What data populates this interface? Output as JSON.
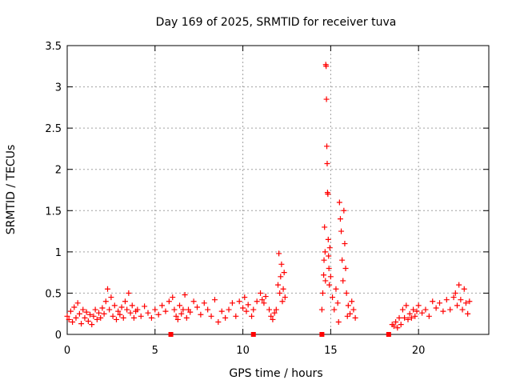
{
  "chart_data": {
    "type": "scatter",
    "title": "Day 169 of 2025, SRMTID for receiver tuva",
    "xlabel": "GPS time / hours",
    "ylabel": "SRMTID / TECUs",
    "xlim": [
      0,
      24
    ],
    "ylim": [
      0,
      3.5
    ],
    "xticks": [
      0,
      5,
      10,
      15,
      20
    ],
    "yticks": [
      0,
      0.5,
      1,
      1.5,
      2,
      2.5,
      3,
      3.5
    ],
    "xtick_labels": [
      "0",
      "5",
      "10",
      "15",
      "20"
    ],
    "ytick_labels": [
      "0",
      "0.5",
      "1",
      "1.5",
      "2",
      "2.5",
      "3",
      "3.5"
    ],
    "grid": true,
    "series": [
      {
        "name": "SRMTID",
        "marker": "plus",
        "color": "#ff0000",
        "points": [
          [
            0.0,
            0.22
          ],
          [
            0.1,
            0.18
          ],
          [
            0.2,
            0.28
          ],
          [
            0.3,
            0.15
          ],
          [
            0.4,
            0.33
          ],
          [
            0.5,
            0.2
          ],
          [
            0.6,
            0.38
          ],
          [
            0.7,
            0.25
          ],
          [
            0.8,
            0.13
          ],
          [
            0.9,
            0.3
          ],
          [
            1.0,
            0.2
          ],
          [
            1.1,
            0.27
          ],
          [
            1.2,
            0.16
          ],
          [
            1.3,
            0.24
          ],
          [
            1.4,
            0.12
          ],
          [
            1.5,
            0.22
          ],
          [
            1.6,
            0.3
          ],
          [
            1.7,
            0.18
          ],
          [
            1.8,
            0.26
          ],
          [
            1.9,
            0.2
          ],
          [
            2.0,
            0.32
          ],
          [
            2.1,
            0.25
          ],
          [
            2.2,
            0.4
          ],
          [
            2.3,
            0.55
          ],
          [
            2.4,
            0.3
          ],
          [
            2.5,
            0.45
          ],
          [
            2.6,
            0.22
          ],
          [
            2.7,
            0.35
          ],
          [
            2.8,
            0.18
          ],
          [
            2.9,
            0.28
          ],
          [
            3.0,
            0.24
          ],
          [
            3.1,
            0.33
          ],
          [
            3.2,
            0.2
          ],
          [
            3.3,
            0.4
          ],
          [
            3.4,
            0.3
          ],
          [
            3.5,
            0.5
          ],
          [
            3.6,
            0.26
          ],
          [
            3.7,
            0.35
          ],
          [
            3.8,
            0.2
          ],
          [
            3.9,
            0.28
          ],
          [
            4.0,
            0.3
          ],
          [
            4.2,
            0.22
          ],
          [
            4.4,
            0.34
          ],
          [
            4.6,
            0.26
          ],
          [
            4.8,
            0.2
          ],
          [
            5.0,
            0.3
          ],
          [
            5.2,
            0.24
          ],
          [
            5.4,
            0.35
          ],
          [
            5.6,
            0.28
          ],
          [
            5.8,
            0.4
          ],
          [
            6.0,
            0.45
          ],
          [
            6.1,
            0.3
          ],
          [
            6.2,
            0.22
          ],
          [
            6.3,
            0.18
          ],
          [
            6.4,
            0.35
          ],
          [
            6.5,
            0.25
          ],
          [
            6.6,
            0.3
          ],
          [
            6.7,
            0.48
          ],
          [
            6.8,
            0.2
          ],
          [
            6.9,
            0.3
          ],
          [
            7.0,
            0.27
          ],
          [
            7.2,
            0.4
          ],
          [
            7.4,
            0.33
          ],
          [
            7.6,
            0.24
          ],
          [
            7.8,
            0.38
          ],
          [
            8.0,
            0.3
          ],
          [
            8.2,
            0.22
          ],
          [
            8.4,
            0.42
          ],
          [
            8.6,
            0.15
          ],
          [
            8.8,
            0.28
          ],
          [
            9.0,
            0.2
          ],
          [
            9.2,
            0.3
          ],
          [
            9.4,
            0.38
          ],
          [
            9.6,
            0.22
          ],
          [
            9.8,
            0.4
          ],
          [
            10.0,
            0.32
          ],
          [
            10.1,
            0.45
          ],
          [
            10.2,
            0.28
          ],
          [
            10.3,
            0.36
          ],
          [
            10.5,
            0.22
          ],
          [
            10.6,
            0.3
          ],
          [
            10.8,
            0.4
          ],
          [
            11.0,
            0.5
          ],
          [
            11.1,
            0.42
          ],
          [
            11.2,
            0.38
          ],
          [
            11.3,
            0.46
          ],
          [
            11.5,
            0.3
          ],
          [
            11.6,
            0.22
          ],
          [
            11.7,
            0.18
          ],
          [
            11.8,
            0.26
          ],
          [
            11.9,
            0.3
          ],
          [
            12.0,
            0.6
          ],
          [
            12.05,
            0.98
          ],
          [
            12.1,
            0.5
          ],
          [
            12.15,
            0.7
          ],
          [
            12.2,
            0.85
          ],
          [
            12.25,
            0.4
          ],
          [
            12.3,
            0.55
          ],
          [
            12.35,
            0.75
          ],
          [
            12.4,
            0.45
          ],
          [
            14.5,
            0.3
          ],
          [
            14.55,
            0.5
          ],
          [
            14.6,
            0.72
          ],
          [
            14.62,
            0.9
          ],
          [
            14.65,
            1.3
          ],
          [
            14.68,
            1.0
          ],
          [
            14.7,
            0.65
          ],
          [
            14.72,
            3.27
          ],
          [
            14.74,
            3.25
          ],
          [
            14.76,
            2.85
          ],
          [
            14.78,
            2.28
          ],
          [
            14.8,
            2.07
          ],
          [
            14.82,
            1.72
          ],
          [
            14.84,
            1.7
          ],
          [
            14.86,
            1.15
          ],
          [
            14.88,
            0.95
          ],
          [
            14.9,
            0.8
          ],
          [
            14.92,
            0.6
          ],
          [
            14.95,
            1.05
          ],
          [
            15.0,
            0.7
          ],
          [
            15.1,
            0.45
          ],
          [
            15.2,
            0.3
          ],
          [
            15.3,
            0.55
          ],
          [
            15.4,
            0.38
          ],
          [
            15.5,
            1.6
          ],
          [
            15.55,
            1.4
          ],
          [
            15.6,
            1.25
          ],
          [
            15.65,
            0.9
          ],
          [
            15.7,
            0.65
          ],
          [
            15.75,
            1.5
          ],
          [
            15.8,
            1.1
          ],
          [
            15.85,
            0.8
          ],
          [
            15.9,
            0.5
          ],
          [
            16.0,
            0.35
          ],
          [
            16.1,
            0.25
          ],
          [
            16.2,
            0.4
          ],
          [
            16.3,
            0.3
          ],
          [
            16.4,
            0.2
          ],
          [
            15.45,
            0.15
          ],
          [
            15.95,
            0.22
          ],
          [
            18.5,
            0.12
          ],
          [
            18.6,
            0.1
          ],
          [
            18.7,
            0.15
          ],
          [
            18.8,
            0.08
          ],
          [
            18.9,
            0.2
          ],
          [
            19.0,
            0.12
          ],
          [
            19.1,
            0.3
          ],
          [
            19.2,
            0.2
          ],
          [
            19.3,
            0.35
          ],
          [
            19.4,
            0.18
          ],
          [
            19.5,
            0.25
          ],
          [
            19.6,
            0.2
          ],
          [
            19.7,
            0.3
          ],
          [
            19.8,
            0.22
          ],
          [
            19.9,
            0.28
          ],
          [
            20.0,
            0.35
          ],
          [
            20.2,
            0.26
          ],
          [
            20.4,
            0.3
          ],
          [
            20.6,
            0.22
          ],
          [
            20.8,
            0.4
          ],
          [
            21.0,
            0.32
          ],
          [
            21.2,
            0.38
          ],
          [
            21.4,
            0.28
          ],
          [
            21.6,
            0.42
          ],
          [
            21.8,
            0.3
          ],
          [
            22.0,
            0.45
          ],
          [
            22.1,
            0.5
          ],
          [
            22.2,
            0.35
          ],
          [
            22.3,
            0.6
          ],
          [
            22.4,
            0.42
          ],
          [
            22.5,
            0.3
          ],
          [
            22.6,
            0.55
          ],
          [
            22.7,
            0.38
          ],
          [
            22.8,
            0.25
          ],
          [
            22.9,
            0.4
          ]
        ]
      },
      {
        "name": "gap-markers",
        "marker": "square",
        "color": "#ff0000",
        "points": [
          [
            5.9,
            0
          ],
          [
            10.6,
            0
          ],
          [
            14.5,
            0
          ],
          [
            18.3,
            0
          ]
        ]
      }
    ]
  }
}
